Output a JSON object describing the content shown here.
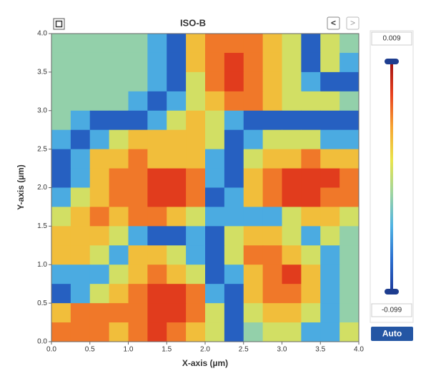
{
  "chart_data": {
    "type": "heatmap",
    "title": "ISO-B",
    "xlabel": "X-axis (µm)",
    "ylabel": "Y-axis (µm)",
    "xlim": [
      0,
      4
    ],
    "ylim": [
      0,
      4
    ],
    "xticks": [
      {
        "value": 0,
        "label": "0.0"
      },
      {
        "value": 0.5,
        "label": "0.5"
      },
      {
        "value": 1,
        "label": "1.0"
      },
      {
        "value": 1.5,
        "label": "1.5"
      },
      {
        "value": 2,
        "label": "2.0"
      },
      {
        "value": 2.5,
        "label": "2.5"
      },
      {
        "value": 3,
        "label": "3.0"
      },
      {
        "value": 3.5,
        "label": "3.5"
      },
      {
        "value": 4,
        "label": "4.0"
      }
    ],
    "yticks": [
      {
        "value": 0,
        "label": "0.0"
      },
      {
        "value": 0.5,
        "label": "0.5"
      },
      {
        "value": 1,
        "label": "1.0"
      },
      {
        "value": 1.5,
        "label": "1.5"
      },
      {
        "value": 2,
        "label": "2.0"
      },
      {
        "value": 2.5,
        "label": "2.5"
      },
      {
        "value": 3,
        "label": "3.0"
      },
      {
        "value": 3.5,
        "label": "3.5"
      },
      {
        "value": 4,
        "label": "4.0"
      }
    ],
    "colorbar": {
      "max": 0.009,
      "min": -0.099
    },
    "colormap": [
      "#1c3a9c",
      "#2a6fd0",
      "#4fb3e3",
      "#9fd5a0",
      "#e9e44a",
      "#f7a531",
      "#e8401e",
      "#a0100f"
    ],
    "z": [
      [
        -0.055,
        -0.055,
        -0.055,
        -0.055,
        -0.055,
        -0.07,
        -0.088,
        -0.028,
        -0.015,
        -0.015,
        -0.015,
        -0.028,
        -0.042,
        -0.088,
        -0.042,
        -0.055
      ],
      [
        -0.055,
        -0.055,
        -0.055,
        -0.055,
        -0.055,
        -0.07,
        -0.088,
        -0.028,
        -0.015,
        -0.005,
        -0.015,
        -0.028,
        -0.042,
        -0.088,
        -0.042,
        -0.07
      ],
      [
        -0.055,
        -0.055,
        -0.055,
        -0.055,
        -0.055,
        -0.07,
        -0.088,
        -0.042,
        -0.015,
        -0.005,
        -0.015,
        -0.028,
        -0.042,
        -0.07,
        -0.088,
        -0.088
      ],
      [
        -0.055,
        -0.055,
        -0.055,
        -0.055,
        -0.07,
        -0.088,
        -0.07,
        -0.042,
        -0.028,
        -0.015,
        -0.015,
        -0.028,
        -0.042,
        -0.042,
        -0.042,
        -0.055
      ],
      [
        -0.055,
        -0.07,
        -0.088,
        -0.088,
        -0.088,
        -0.07,
        -0.042,
        -0.028,
        -0.042,
        -0.07,
        -0.088,
        -0.088,
        -0.088,
        -0.088,
        -0.088,
        -0.088
      ],
      [
        -0.07,
        -0.088,
        -0.07,
        -0.042,
        -0.028,
        -0.028,
        -0.028,
        -0.028,
        -0.042,
        -0.088,
        -0.07,
        -0.042,
        -0.042,
        -0.042,
        -0.07,
        -0.07
      ],
      [
        -0.088,
        -0.07,
        -0.028,
        -0.028,
        -0.015,
        -0.028,
        -0.028,
        -0.028,
        -0.07,
        -0.088,
        -0.042,
        -0.028,
        -0.028,
        -0.015,
        -0.028,
        -0.028
      ],
      [
        -0.088,
        -0.07,
        -0.028,
        -0.015,
        -0.015,
        -0.005,
        -0.005,
        -0.015,
        -0.07,
        -0.088,
        -0.028,
        -0.015,
        -0.005,
        -0.005,
        -0.005,
        -0.015
      ],
      [
        -0.07,
        -0.042,
        -0.028,
        -0.015,
        -0.015,
        -0.005,
        -0.005,
        -0.015,
        -0.088,
        -0.07,
        -0.028,
        -0.015,
        -0.005,
        -0.005,
        -0.015,
        -0.015
      ],
      [
        -0.042,
        -0.028,
        -0.015,
        -0.028,
        -0.015,
        -0.015,
        -0.028,
        -0.042,
        -0.07,
        -0.07,
        -0.07,
        -0.07,
        -0.042,
        -0.028,
        -0.028,
        -0.042
      ],
      [
        -0.028,
        -0.028,
        -0.028,
        -0.042,
        -0.07,
        -0.088,
        -0.088,
        -0.07,
        -0.088,
        -0.042,
        -0.028,
        -0.028,
        -0.042,
        -0.07,
        -0.042,
        -0.055
      ],
      [
        -0.028,
        -0.028,
        -0.042,
        -0.07,
        -0.028,
        -0.028,
        -0.042,
        -0.07,
        -0.088,
        -0.042,
        -0.015,
        -0.015,
        -0.028,
        -0.042,
        -0.07,
        -0.055
      ],
      [
        -0.07,
        -0.07,
        -0.07,
        -0.042,
        -0.028,
        -0.015,
        -0.028,
        -0.042,
        -0.088,
        -0.07,
        -0.028,
        -0.015,
        -0.005,
        -0.028,
        -0.07,
        -0.055
      ],
      [
        -0.088,
        -0.07,
        -0.042,
        -0.028,
        -0.015,
        -0.005,
        -0.005,
        -0.015,
        -0.07,
        -0.088,
        -0.028,
        -0.015,
        -0.015,
        -0.028,
        -0.07,
        -0.055
      ],
      [
        -0.028,
        -0.015,
        -0.015,
        -0.015,
        -0.015,
        -0.005,
        -0.005,
        -0.015,
        -0.042,
        -0.088,
        -0.042,
        -0.028,
        -0.028,
        -0.042,
        -0.07,
        -0.055
      ],
      [
        -0.015,
        -0.015,
        -0.015,
        -0.028,
        -0.015,
        -0.005,
        -0.015,
        -0.028,
        -0.042,
        -0.088,
        -0.055,
        -0.042,
        -0.042,
        -0.07,
        -0.07,
        -0.042
      ]
    ]
  },
  "controls": {
    "prev": "<",
    "next": ">",
    "auto": "Auto"
  }
}
